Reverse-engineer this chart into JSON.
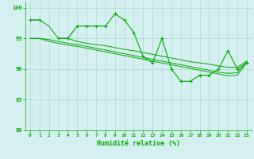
{
  "xlabel": "Humidité relative (%)",
  "background_color": "#d4f0f0",
  "grid_color": "#aaddcc",
  "line_color": "#00aa00",
  "series_main": [
    98,
    98,
    null,
    95,
    95,
    97,
    97,
    97,
    97,
    99,
    98,
    96,
    92,
    91,
    95,
    90,
    88,
    88,
    89,
    89,
    90,
    93,
    90,
    91
  ],
  "trend1_y": [
    98,
    98,
    97,
    95,
    95,
    94.5,
    94.2,
    94.0,
    93.8,
    93.5,
    93.2,
    93.0,
    92.7,
    92.4,
    92.1,
    91.8,
    91.5,
    91.2,
    91.0,
    90.8,
    90.5,
    90.3,
    90.3,
    91.3
  ],
  "trend2_y": [
    95,
    95,
    94.8,
    94.5,
    94.2,
    94.0,
    93.7,
    93.4,
    93.1,
    92.8,
    92.5,
    92.2,
    91.9,
    91.6,
    91.3,
    91.0,
    90.7,
    90.4,
    90.1,
    89.8,
    89.5,
    89.3,
    89.4,
    91.2
  ],
  "trend3_y": [
    95,
    95,
    94.5,
    94.2,
    93.9,
    93.7,
    93.4,
    93.1,
    92.8,
    92.5,
    92.2,
    91.9,
    91.6,
    91.3,
    91.0,
    90.7,
    90.4,
    90.1,
    89.8,
    89.5,
    89.2,
    88.9,
    89.0,
    91.0
  ],
  "ylim": [
    80,
    101
  ],
  "yticks": [
    80,
    85,
    90,
    95,
    100
  ],
  "xticks": [
    0,
    1,
    2,
    3,
    4,
    5,
    6,
    7,
    8,
    9,
    10,
    11,
    12,
    13,
    14,
    15,
    16,
    17,
    18,
    19,
    20,
    21,
    22,
    23
  ]
}
